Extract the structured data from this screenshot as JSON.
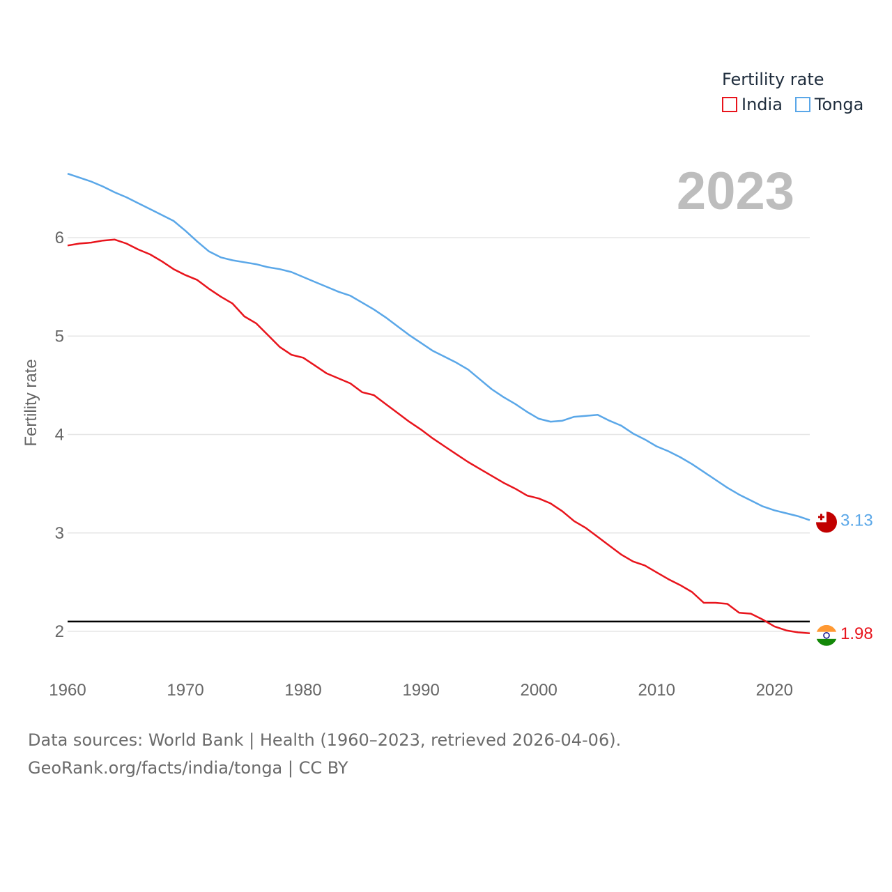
{
  "chart_data": {
    "type": "line",
    "title": "",
    "xlabel": "",
    "ylabel": "Fertility rate",
    "year_label": "2023",
    "xlim": [
      1960,
      2023
    ],
    "ylim": [
      1.6,
      6.7
    ],
    "x_ticks": [
      1960,
      1970,
      1980,
      1990,
      2000,
      2010,
      2020
    ],
    "y_ticks": [
      2,
      3,
      4,
      5,
      6
    ],
    "reference_line": 2.1,
    "legend_title": "Fertility rate",
    "x": [
      1960,
      1961,
      1962,
      1963,
      1964,
      1965,
      1966,
      1967,
      1968,
      1969,
      1970,
      1971,
      1972,
      1973,
      1974,
      1975,
      1976,
      1977,
      1978,
      1979,
      1980,
      1981,
      1982,
      1983,
      1984,
      1985,
      1986,
      1987,
      1988,
      1989,
      1990,
      1991,
      1992,
      1993,
      1994,
      1995,
      1996,
      1997,
      1998,
      1999,
      2000,
      2001,
      2002,
      2003,
      2004,
      2005,
      2006,
      2007,
      2008,
      2009,
      2010,
      2011,
      2012,
      2013,
      2014,
      2015,
      2016,
      2017,
      2018,
      2019,
      2020,
      2021,
      2022,
      2023
    ],
    "series": [
      {
        "name": "India",
        "color": "#e8141c",
        "end_label": "1.98",
        "values": [
          5.92,
          5.94,
          5.95,
          5.97,
          5.98,
          5.94,
          5.88,
          5.83,
          5.76,
          5.68,
          5.62,
          5.57,
          5.48,
          5.4,
          5.33,
          5.2,
          5.13,
          5.01,
          4.89,
          4.81,
          4.78,
          4.7,
          4.62,
          4.57,
          4.52,
          4.43,
          4.4,
          4.31,
          4.22,
          4.13,
          4.05,
          3.96,
          3.88,
          3.8,
          3.72,
          3.65,
          3.58,
          3.51,
          3.45,
          3.38,
          3.35,
          3.3,
          3.22,
          3.12,
          3.05,
          2.96,
          2.87,
          2.78,
          2.71,
          2.67,
          2.6,
          2.53,
          2.47,
          2.4,
          2.29,
          2.29,
          2.28,
          2.19,
          2.18,
          2.12,
          2.05,
          2.01,
          1.99,
          1.98
        ]
      },
      {
        "name": "Tonga",
        "color": "#5aa7e8",
        "end_label": "3.13",
        "values": [
          6.65,
          6.61,
          6.57,
          6.52,
          6.46,
          6.41,
          6.35,
          6.29,
          6.23,
          6.17,
          6.07,
          5.96,
          5.86,
          5.8,
          5.77,
          5.75,
          5.73,
          5.7,
          5.68,
          5.65,
          5.6,
          5.55,
          5.5,
          5.45,
          5.41,
          5.34,
          5.27,
          5.19,
          5.1,
          5.01,
          4.93,
          4.85,
          4.79,
          4.73,
          4.66,
          4.56,
          4.46,
          4.38,
          4.31,
          4.23,
          4.16,
          4.13,
          4.14,
          4.18,
          4.19,
          4.2,
          4.14,
          4.09,
          4.01,
          3.95,
          3.88,
          3.83,
          3.77,
          3.7,
          3.62,
          3.54,
          3.46,
          3.39,
          3.33,
          3.27,
          3.23,
          3.2,
          3.17,
          3.13
        ]
      }
    ]
  },
  "footer": {
    "line1": "Data sources: World Bank | Health (1960–2023, retrieved 2026-04-06).",
    "line2": "GeoRank.org/facts/india/tonga | CC BY"
  }
}
